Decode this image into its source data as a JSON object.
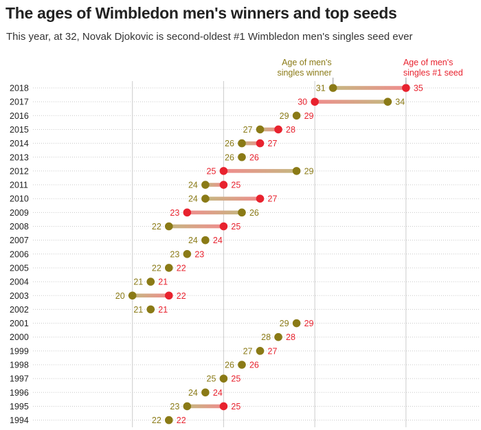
{
  "title": "The ages of Wimbledon men's winners and top seeds",
  "subtitle": "This year, at 32, Novak Djokovic is second-oldest #1 Wimbledon men's singles seed ever",
  "colors": {
    "winner": "#8a7a16",
    "seed": "#e8222e",
    "text": "#222222",
    "grid": "#cccccc"
  },
  "chart_data": {
    "type": "dumbbell",
    "title": "The ages of Wimbledon men's winners and top seeds",
    "xlim": [
      15,
      39
    ],
    "grid": true,
    "series": [
      {
        "name": "Age of men's singles winner",
        "color": "#8a7a16"
      },
      {
        "name": "Age of men's singles #1 seed",
        "color": "#e8222e"
      }
    ],
    "legend_lines": {
      "winner": [
        "Age of men's",
        "singles winner"
      ],
      "seed": [
        "Age of men's",
        "singles #1 seed"
      ]
    },
    "rows": [
      {
        "year": "2018",
        "winner": 31,
        "seed": 35
      },
      {
        "year": "2017",
        "winner": 34,
        "seed": 30
      },
      {
        "year": "2016",
        "winner": 29,
        "seed": 29
      },
      {
        "year": "2015",
        "winner": 27,
        "seed": 28
      },
      {
        "year": "2014",
        "winner": 26,
        "seed": 27
      },
      {
        "year": "2013",
        "winner": 26,
        "seed": 26
      },
      {
        "year": "2012",
        "winner": 29,
        "seed": 25
      },
      {
        "year": "2011",
        "winner": 24,
        "seed": 25
      },
      {
        "year": "2010",
        "winner": 24,
        "seed": 27
      },
      {
        "year": "2009",
        "winner": 26,
        "seed": 23
      },
      {
        "year": "2008",
        "winner": 22,
        "seed": 25
      },
      {
        "year": "2007",
        "winner": 24,
        "seed": 24
      },
      {
        "year": "2006",
        "winner": 23,
        "seed": 23
      },
      {
        "year": "2005",
        "winner": 22,
        "seed": 22
      },
      {
        "year": "2004",
        "winner": 21,
        "seed": 21
      },
      {
        "year": "2003",
        "winner": 20,
        "seed": 22
      },
      {
        "year": "2002",
        "winner": 21,
        "seed": 21
      },
      {
        "year": "2001",
        "winner": 29,
        "seed": 29
      },
      {
        "year": "2000",
        "winner": 28,
        "seed": 28
      },
      {
        "year": "1999",
        "winner": 27,
        "seed": 27
      },
      {
        "year": "1998",
        "winner": 26,
        "seed": 26
      },
      {
        "year": "1997",
        "winner": 25,
        "seed": 25
      },
      {
        "year": "1996",
        "winner": 24,
        "seed": 24
      },
      {
        "year": "1995",
        "winner": 23,
        "seed": 25
      },
      {
        "year": "1994",
        "winner": 22,
        "seed": 22
      }
    ]
  }
}
